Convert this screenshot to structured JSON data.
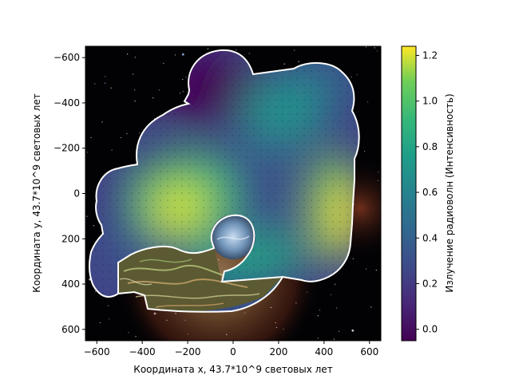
{
  "chart_data": {
    "type": "heatmap",
    "title": "",
    "xlabel": "Координата x, 43.7*10^9 световых лет",
    "ylabel": "Координата y, 43.7*10^9 световых лет",
    "xlim": [
      -650,
      650
    ],
    "ylim": [
      650,
      -650
    ],
    "y_inverted": true,
    "x_ticks": [
      -600,
      -400,
      -200,
      0,
      200,
      400,
      600
    ],
    "y_ticks": [
      -600,
      -400,
      -200,
      0,
      200,
      400,
      600
    ],
    "x_tick_labels": [
      "−600",
      "−400",
      "−200",
      "0",
      "200",
      "400",
      "600"
    ],
    "y_tick_labels": [
      "−600",
      "−400",
      "−200",
      "0",
      "200",
      "400",
      "600"
    ],
    "colorbar": {
      "label": "Излучение радиоволн (Интенсивность)",
      "colormap": "viridis",
      "range": [
        -0.05,
        1.24
      ],
      "ticks": [
        0.0,
        0.2,
        0.4,
        0.6,
        0.8,
        1.0,
        1.2
      ],
      "tick_labels": [
        "0.0",
        "0.2",
        "0.4",
        "0.6",
        "0.8",
        "1.0",
        "1.2"
      ]
    },
    "intensity_peaks": [
      {
        "x": -230,
        "y": 80,
        "value": 1.2
      },
      {
        "x": 490,
        "y": 120,
        "value": 1.2
      },
      {
        "x": 200,
        "y": -340,
        "value": 0.65
      },
      {
        "x": -30,
        "y": 300,
        "value": 0.75
      }
    ],
    "background": "nebula image visible outside the masked region",
    "outline_color": "#ffffff"
  }
}
